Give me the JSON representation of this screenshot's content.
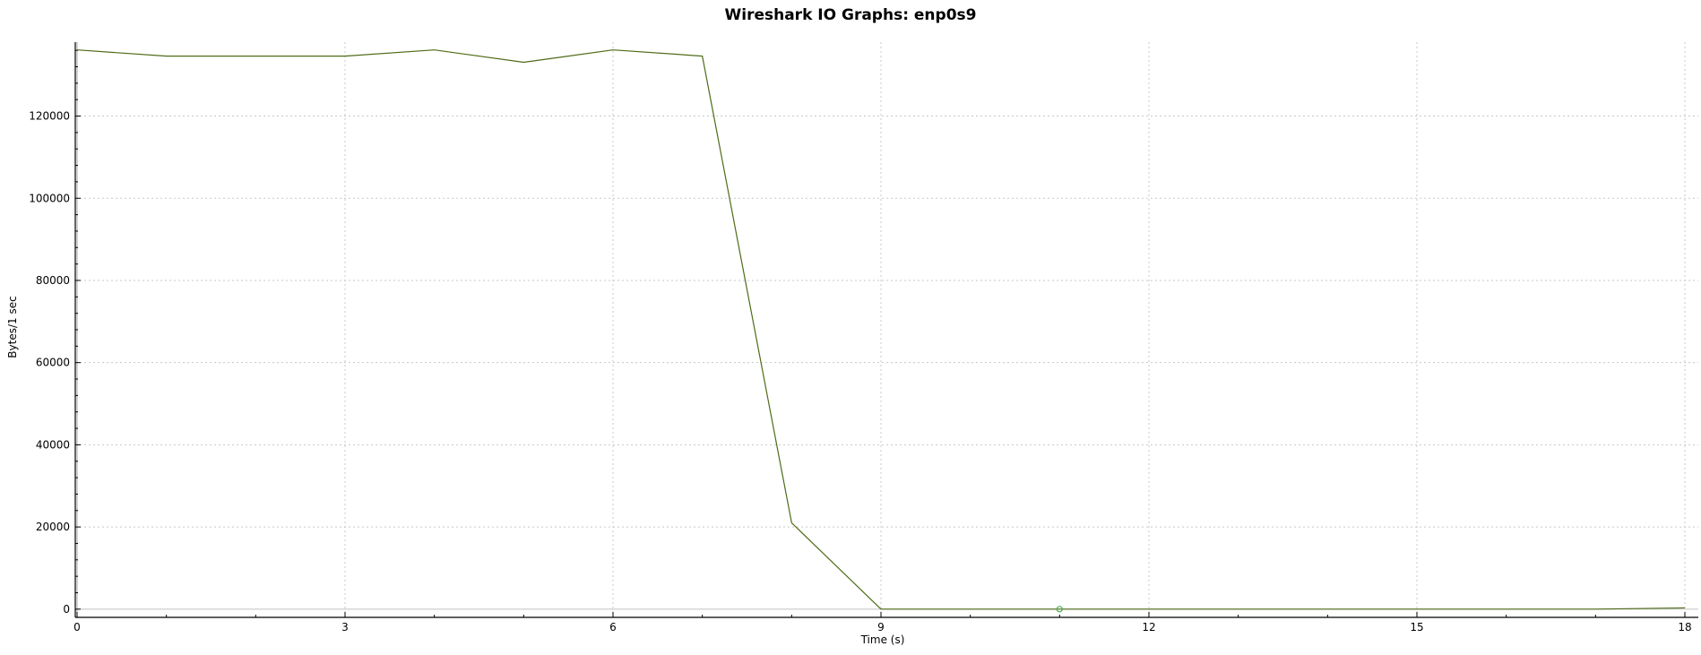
{
  "chart_data": {
    "type": "line",
    "title": "Wireshark IO Graphs: enp0s9",
    "xlabel": "Time (s)",
    "ylabel": "Bytes/1 sec",
    "xlim": [
      0,
      18
    ],
    "ylim": [
      -2000,
      138000
    ],
    "x_ticks": [
      0,
      3,
      6,
      9,
      12,
      15,
      18
    ],
    "y_ticks": [
      0,
      20000,
      40000,
      60000,
      80000,
      100000,
      120000
    ],
    "grid": true,
    "legend": "none",
    "series": [
      {
        "color": "#4f6b17",
        "x": [
          0,
          1,
          2,
          3,
          4,
          5,
          6,
          7,
          8,
          9,
          10,
          11,
          12,
          13,
          14,
          15,
          16,
          17,
          18
        ],
        "y": [
          136100,
          134600,
          134600,
          134600,
          136100,
          133100,
          136100,
          134600,
          21000,
          0,
          0,
          0,
          0,
          0,
          0,
          0,
          0,
          0,
          300
        ]
      }
    ],
    "markers": [
      {
        "x": 11,
        "y": 0,
        "color": "#4caf50"
      }
    ]
  }
}
